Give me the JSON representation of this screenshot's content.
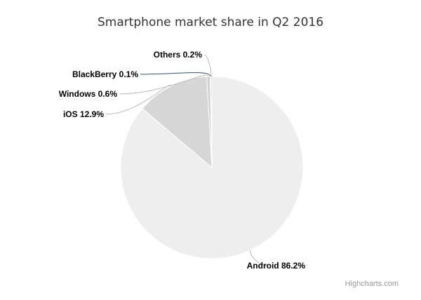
{
  "chart_data": {
    "type": "pie",
    "title": "Smartphone market share in Q2 2016",
    "slices": [
      {
        "name": "Android",
        "value": 86.2,
        "label": "Android 86.2%",
        "color": "#eeeeee"
      },
      {
        "name": "iOS",
        "value": 12.9,
        "label": "iOS 12.9%",
        "color": "#d6d6d6"
      },
      {
        "name": "Windows",
        "value": 0.6,
        "label": "Windows 0.6%",
        "color": "#cfcfcf"
      },
      {
        "name": "BlackBerry",
        "value": 0.1,
        "label": "BlackBerry 0.1%",
        "color": "#2f4f6f"
      },
      {
        "name": "Others",
        "value": 0.2,
        "label": "Others 0.2%",
        "color": "#b8b8b8"
      }
    ],
    "data_labels": true,
    "legend": "none"
  },
  "credits": "Highcharts.com"
}
